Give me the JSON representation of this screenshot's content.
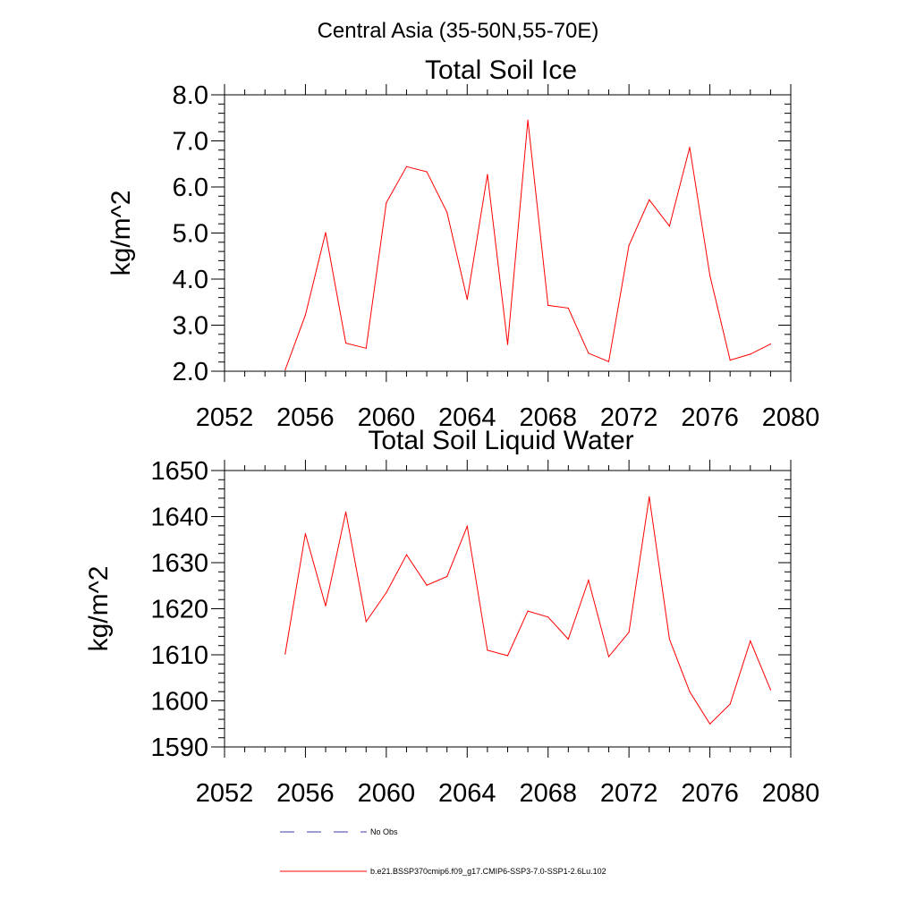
{
  "figure": {
    "title": "Central Asia (35-50N,55-70E)"
  },
  "colors": {
    "series": "#ff0000",
    "obs": "#3c3ca8",
    "axis": "#000000"
  },
  "legend": {
    "obs_label": "No Obs",
    "model_label": "b.e21.BSSP370cmip6.f09_g17.CMIP6-SSP3-7.0-SSP1-2.6Lu.102"
  },
  "chart_data": [
    {
      "type": "line",
      "title": "Total Soil Ice",
      "xlabel": "",
      "ylabel": "kg/m^2",
      "xlim": [
        2052,
        2080
      ],
      "ylim": [
        2.0,
        8.0
      ],
      "xticks": [
        2052,
        2056,
        2060,
        2064,
        2068,
        2072,
        2076,
        2080
      ],
      "yticks": [
        2.0,
        3.0,
        4.0,
        5.0,
        6.0,
        7.0,
        8.0
      ],
      "ytick_labels": [
        "2.0",
        "3.0",
        "4.0",
        "5.0",
        "6.0",
        "7.0",
        "8.0"
      ],
      "x": [
        2055,
        2056,
        2057,
        2058,
        2059,
        2060,
        2061,
        2062,
        2063,
        2064,
        2065,
        2066,
        2067,
        2068,
        2069,
        2070,
        2071,
        2072,
        2073,
        2074,
        2075,
        2076,
        2077,
        2078,
        2079
      ],
      "series": [
        {
          "values": [
            2.03,
            3.22,
            5.01,
            2.61,
            2.5,
            5.66,
            6.44,
            6.33,
            5.45,
            3.56,
            6.27,
            2.58,
            7.45,
            3.43,
            3.37,
            2.39,
            2.21,
            4.73,
            5.72,
            5.15,
            6.86,
            4.08,
            2.24,
            2.37,
            2.59
          ]
        }
      ]
    },
    {
      "type": "line",
      "title": "Total Soil Liquid Water",
      "xlabel": "",
      "ylabel": "kg/m^2",
      "xlim": [
        2052,
        2080
      ],
      "ylim": [
        1590,
        1650
      ],
      "xticks": [
        2052,
        2056,
        2060,
        2064,
        2068,
        2072,
        2076,
        2080
      ],
      "yticks": [
        1590,
        1600,
        1610,
        1620,
        1630,
        1640,
        1650
      ],
      "ytick_labels": [
        "1590",
        "1600",
        "1610",
        "1620",
        "1630",
        "1640",
        "1650"
      ],
      "x": [
        2055,
        2056,
        2057,
        2058,
        2059,
        2060,
        2061,
        2062,
        2063,
        2064,
        2065,
        2066,
        2067,
        2068,
        2069,
        2070,
        2071,
        2072,
        2073,
        2074,
        2075,
        2076,
        2077,
        2078,
        2079
      ],
      "series": [
        {
          "values": [
            1610.2,
            1636.3,
            1620.6,
            1641.0,
            1617.2,
            1623.5,
            1631.7,
            1625.1,
            1627.0,
            1637.9,
            1611.0,
            1609.8,
            1619.5,
            1618.2,
            1613.4,
            1626.2,
            1609.6,
            1614.9,
            1644.3,
            1613.4,
            1602.0,
            1595.0,
            1599.3,
            1613.0,
            1602.4
          ]
        }
      ]
    }
  ]
}
